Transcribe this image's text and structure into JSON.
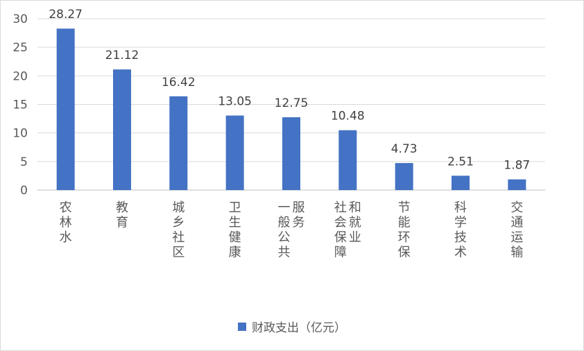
{
  "chart_data": {
    "type": "bar",
    "title": "",
    "xlabel": "",
    "ylabel": "",
    "categories": [
      "农林水",
      "教育",
      "城乡社区",
      "卫生健康",
      "一般公共服务",
      "社会保障和就业",
      "节能环保",
      "科学技术",
      "交通运输"
    ],
    "series": [
      {
        "name": "财政支出（亿元）",
        "color": "#4472c4",
        "values": [
          28.27,
          21.12,
          16.42,
          13.05,
          12.75,
          10.48,
          4.73,
          2.51,
          1.87
        ],
        "labels": [
          "28.27",
          "21.12",
          "16.42",
          "13.05",
          "12.75",
          "10.48",
          "4.73",
          "2.51",
          "1.87"
        ]
      }
    ],
    "ylim": [
      0,
      30
    ],
    "yticks": [
      "0",
      "5",
      "10",
      "15",
      "20",
      "25",
      "30"
    ],
    "grid": true,
    "legend_position": "bottom"
  }
}
